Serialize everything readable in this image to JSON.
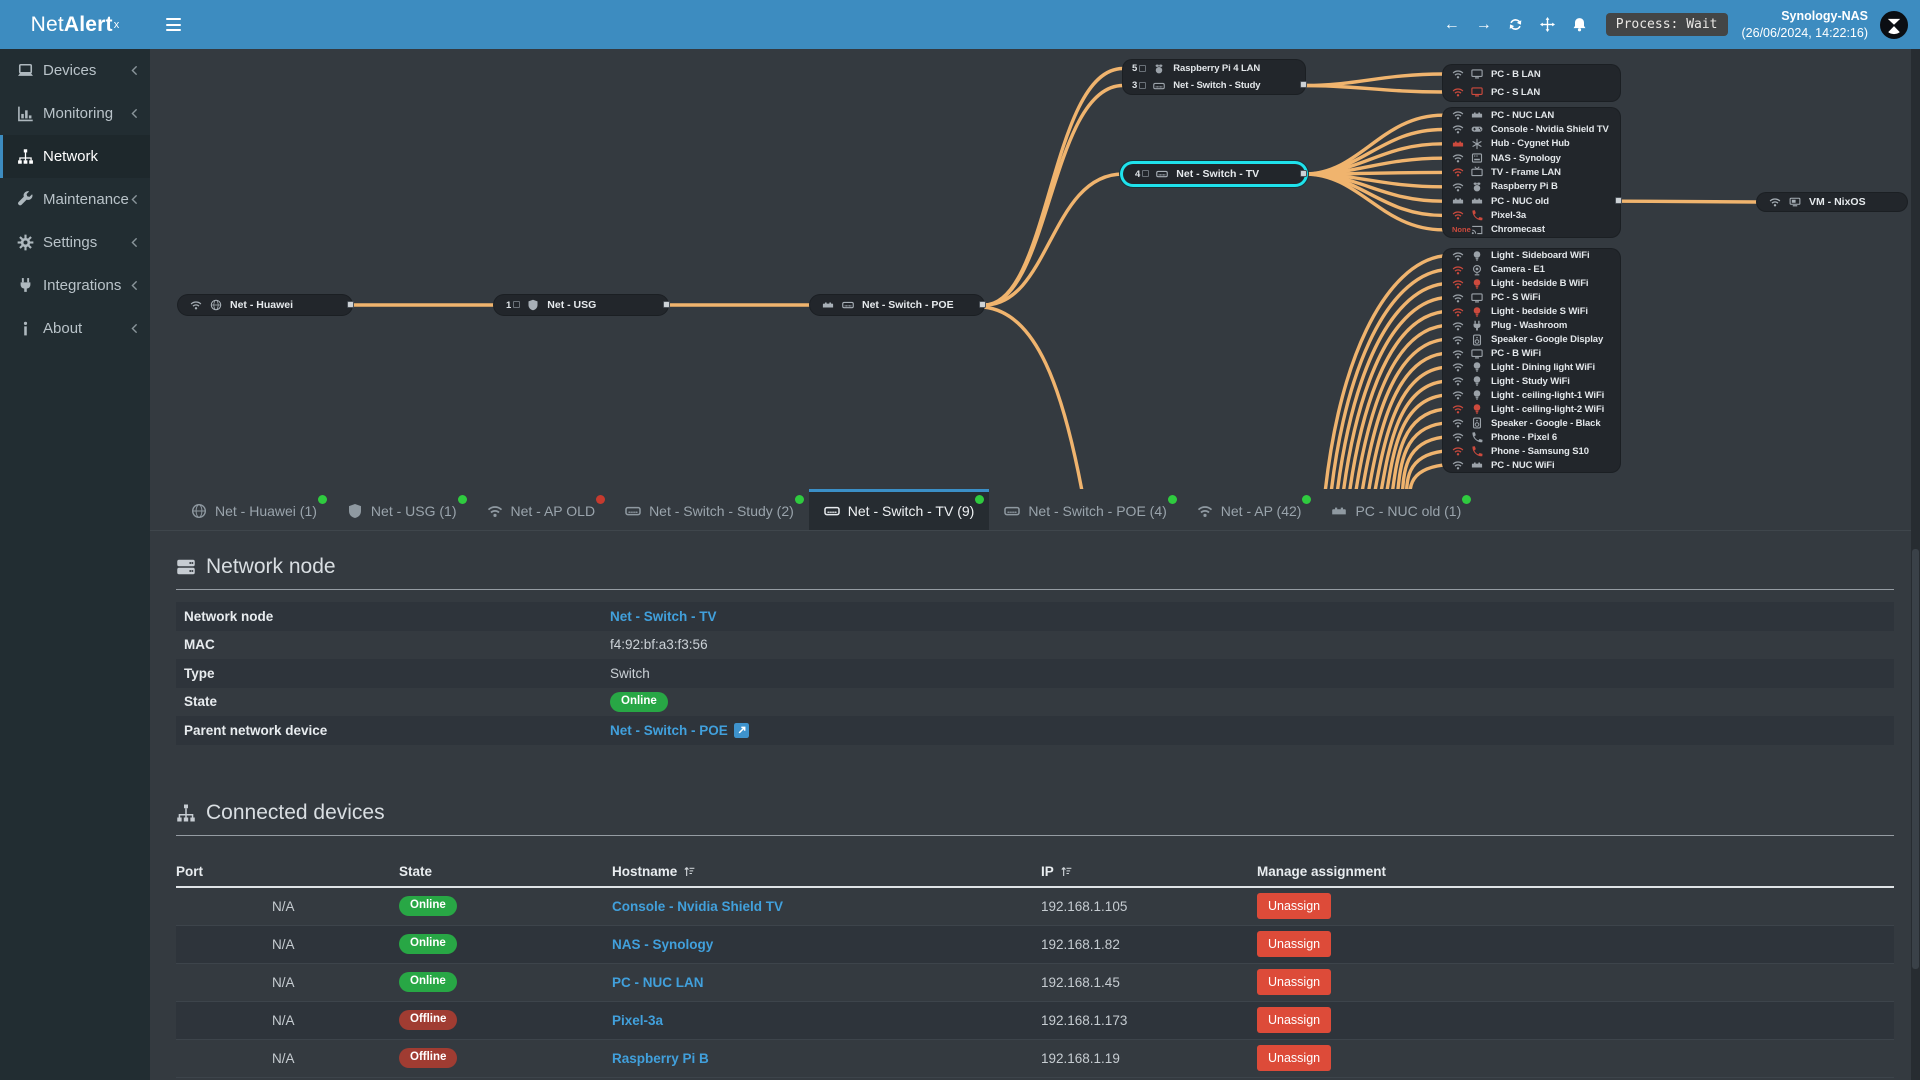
{
  "topbar": {
    "logo_net": "Net",
    "logo_alert": "Alert",
    "logo_sup": "x",
    "nav_icons": [
      "arrow-left",
      "arrow-right",
      "refresh",
      "move",
      "bell"
    ],
    "process_badge": "Process: Wait",
    "host_name": "Synology-NAS",
    "host_time": "(26/06/2024, 14:22:16)"
  },
  "sidebar": {
    "items": [
      {
        "label": "Devices",
        "icon": "laptop-icon",
        "chevron": true,
        "active": false
      },
      {
        "label": "Monitoring",
        "icon": "chart-icon",
        "chevron": true,
        "active": false
      },
      {
        "label": "Network",
        "icon": "sitemap-icon",
        "chevron": false,
        "active": true
      },
      {
        "label": "Maintenance",
        "icon": "wrench-icon",
        "chevron": true,
        "active": false
      },
      {
        "label": "Settings",
        "icon": "gear-icon",
        "chevron": true,
        "active": false
      },
      {
        "label": "Integrations",
        "icon": "plug-icon",
        "chevron": true,
        "active": false
      },
      {
        "label": "About",
        "icon": "info-icon",
        "chevron": true,
        "active": false
      }
    ]
  },
  "topology": {
    "line_color": "#f0b46e",
    "selection_color": "#1fe2ec",
    "single_nodes": [
      {
        "id": "huawei",
        "label": "Net - Huawei",
        "icons": [
          "wifi",
          "globe"
        ],
        "connector": true
      },
      {
        "id": "usg",
        "label": "Net - USG",
        "count": "1",
        "icons": [
          "shield"
        ],
        "connector": true
      },
      {
        "id": "poe",
        "label": "Net - Switch - POE",
        "icons": [
          "eth",
          "switch"
        ],
        "connector": true
      },
      {
        "id": "tv",
        "label": "Net - Switch - TV",
        "count": "4",
        "icons": [
          "switch"
        ],
        "selected": true,
        "connector": true
      },
      {
        "id": "vm",
        "label": "VM - NixOS",
        "icons": [
          "wifi",
          "vm"
        ],
        "connector": false
      }
    ],
    "group_nodes": [
      {
        "id": "hub-study",
        "rows": [
          {
            "count": "5",
            "icon": "pi",
            "label": "Raspberry Pi 4 LAN"
          },
          {
            "count": "3",
            "icon": "switch",
            "label": "Net - Switch - Study",
            "connector": true
          }
        ]
      },
      {
        "id": "lan-a",
        "rows": [
          {
            "conn": "wifi",
            "conn_color": "gray",
            "icon": "monitor",
            "icon_color": "gray",
            "label": "PC - B LAN"
          },
          {
            "conn": "wifi",
            "conn_color": "red",
            "icon": "monitor",
            "icon_color": "red",
            "label": "PC - S LAN"
          }
        ]
      },
      {
        "id": "lan-b",
        "rows": [
          {
            "conn": "wifi",
            "conn_color": "gray",
            "icon": "eth",
            "icon_color": "gray",
            "label": "PC - NUC LAN"
          },
          {
            "conn": "wifi",
            "conn_color": "gray",
            "icon": "gamepad",
            "icon_color": "gray",
            "label": "Console - Nvidia Shield TV"
          },
          {
            "conn": "eth",
            "conn_color": "red",
            "icon": "hub",
            "icon_color": "gray",
            "label": "Hub - Cygnet Hub"
          },
          {
            "conn": "wifi",
            "conn_color": "gray",
            "icon": "nas",
            "icon_color": "gray",
            "label": "NAS - Synology"
          },
          {
            "conn": "wifi",
            "conn_color": "red",
            "icon": "tvset",
            "icon_color": "gray",
            "label": "TV - Frame LAN"
          },
          {
            "conn": "wifi",
            "conn_color": "gray",
            "icon": "pi",
            "icon_color": "gray",
            "label": "Raspberry Pi B"
          },
          {
            "conn": "eth",
            "conn_color": "gray",
            "icon": "eth",
            "icon_color": "gray",
            "label": "PC - NUC old",
            "connector": true
          },
          {
            "conn": "wifi",
            "conn_color": "red",
            "icon": "phone",
            "icon_color": "red",
            "label": "Pixel-3a"
          },
          {
            "conn": "none",
            "conn_color": "red",
            "icon": "cast",
            "icon_color": "gray",
            "label": "Chromecast"
          }
        ]
      },
      {
        "id": "wifi-c",
        "rows": [
          {
            "conn": "wifi",
            "conn_color": "gray",
            "icon": "bulb",
            "icon_color": "gray",
            "label": "Light - Sideboard WiFi"
          },
          {
            "conn": "wifi",
            "conn_color": "red",
            "icon": "camera",
            "icon_color": "gray",
            "label": "Camera - E1"
          },
          {
            "conn": "wifi",
            "conn_color": "red",
            "icon": "bulb",
            "icon_color": "red",
            "label": "Light - bedside B WiFi"
          },
          {
            "conn": "wifi",
            "conn_color": "gray",
            "icon": "monitor",
            "icon_color": "gray",
            "label": "PC - S WiFi"
          },
          {
            "conn": "wifi",
            "conn_color": "red",
            "icon": "bulb",
            "icon_color": "red",
            "label": "Light - bedside S WiFi"
          },
          {
            "conn": "wifi",
            "conn_color": "gray",
            "icon": "plug",
            "icon_color": "gray",
            "label": "Plug - Washroom"
          },
          {
            "conn": "wifi",
            "conn_color": "gray",
            "icon": "speaker",
            "icon_color": "gray",
            "label": "Speaker - Google Display"
          },
          {
            "conn": "wifi",
            "conn_color": "gray",
            "icon": "monitor",
            "icon_color": "gray",
            "label": "PC - B WiFi"
          },
          {
            "conn": "wifi",
            "conn_color": "gray",
            "icon": "bulb",
            "icon_color": "gray",
            "label": "Light - Dining light WiFi"
          },
          {
            "conn": "wifi",
            "conn_color": "gray",
            "icon": "bulb",
            "icon_color": "gray",
            "label": "Light - Study WiFi"
          },
          {
            "conn": "wifi",
            "conn_color": "gray",
            "icon": "bulb",
            "icon_color": "gray",
            "label": "Light - ceiling-light-1 WiFi"
          },
          {
            "conn": "wifi",
            "conn_color": "red",
            "icon": "bulb",
            "icon_color": "red",
            "label": "Light - ceiling-light-2 WiFi"
          },
          {
            "conn": "wifi",
            "conn_color": "gray",
            "icon": "speaker",
            "icon_color": "gray",
            "label": "Speaker - Google - Black"
          },
          {
            "conn": "wifi",
            "conn_color": "gray",
            "icon": "phone",
            "icon_color": "gray",
            "label": "Phone - Pixel 6"
          },
          {
            "conn": "wifi",
            "conn_color": "red",
            "icon": "phone",
            "icon_color": "red",
            "label": "Phone - Samsung S10"
          },
          {
            "conn": "wifi",
            "conn_color": "gray",
            "icon": "eth",
            "icon_color": "gray",
            "label": "PC - NUC WiFi"
          }
        ]
      }
    ]
  },
  "tabs": [
    {
      "label": "Net - Huawei (1)",
      "icon": "globe",
      "dot": "green",
      "active": false
    },
    {
      "label": "Net - USG (1)",
      "icon": "shield",
      "dot": "green",
      "active": false
    },
    {
      "label": "Net - AP OLD",
      "icon": "wifi",
      "dot": "red",
      "active": false
    },
    {
      "label": "Net - Switch - Study (2)",
      "icon": "switch",
      "dot": "green",
      "active": false
    },
    {
      "label": "Net - Switch - TV (9)",
      "icon": "switch",
      "dot": "green",
      "active": true
    },
    {
      "label": "Net - Switch - POE (4)",
      "icon": "switch",
      "dot": "green",
      "active": false
    },
    {
      "label": "Net - AP (42)",
      "icon": "wifi",
      "dot": "green",
      "active": false
    },
    {
      "label": "PC - NUC old (1)",
      "icon": "eth",
      "dot": "green",
      "active": false
    }
  ],
  "network_node": {
    "title": "Network node",
    "rows": [
      {
        "label": "Network node",
        "value": "Net - Switch - TV",
        "type": "link"
      },
      {
        "label": "MAC",
        "value": "f4:92:bf:a3:f3:56",
        "type": "text"
      },
      {
        "label": "Type",
        "value": "Switch",
        "type": "text"
      },
      {
        "label": "State",
        "value": "Online",
        "type": "pill"
      },
      {
        "label": "Parent network device",
        "value": "Net - Switch - POE",
        "type": "link-ext"
      }
    ]
  },
  "connected": {
    "title": "Connected devices",
    "columns": [
      {
        "label": "Port",
        "sortable": false
      },
      {
        "label": "State",
        "sortable": false
      },
      {
        "label": "Hostname",
        "sortable": true
      },
      {
        "label": "IP",
        "sortable": true
      },
      {
        "label": "Manage assignment",
        "sortable": false
      }
    ],
    "rows": [
      {
        "port": "N/A",
        "state": "Online",
        "hostname": "Console - Nvidia Shield TV",
        "ip": "192.168.1.105",
        "action": "Unassign"
      },
      {
        "port": "N/A",
        "state": "Online",
        "hostname": "NAS - Synology",
        "ip": "192.168.1.82",
        "action": "Unassign"
      },
      {
        "port": "N/A",
        "state": "Online",
        "hostname": "PC - NUC LAN",
        "ip": "192.168.1.45",
        "action": "Unassign"
      },
      {
        "port": "N/A",
        "state": "Offline",
        "hostname": "Pixel-3a",
        "ip": "192.168.1.173",
        "action": "Unassign"
      },
      {
        "port": "N/A",
        "state": "Offline",
        "hostname": "Raspberry Pi B",
        "ip": "192.168.1.19",
        "action": "Unassign"
      }
    ]
  },
  "colors": {
    "accent_blue": "#3d8cc0",
    "line_orange": "#f0b46e",
    "selection_cyan": "#1fe2ec",
    "online_green": "#28a745",
    "offline_red": "#a03c32",
    "danger_red": "#dd4b39",
    "dot_green": "#2fcb3f",
    "dot_red": "#c63a2e",
    "link_blue": "#41a0dc"
  }
}
